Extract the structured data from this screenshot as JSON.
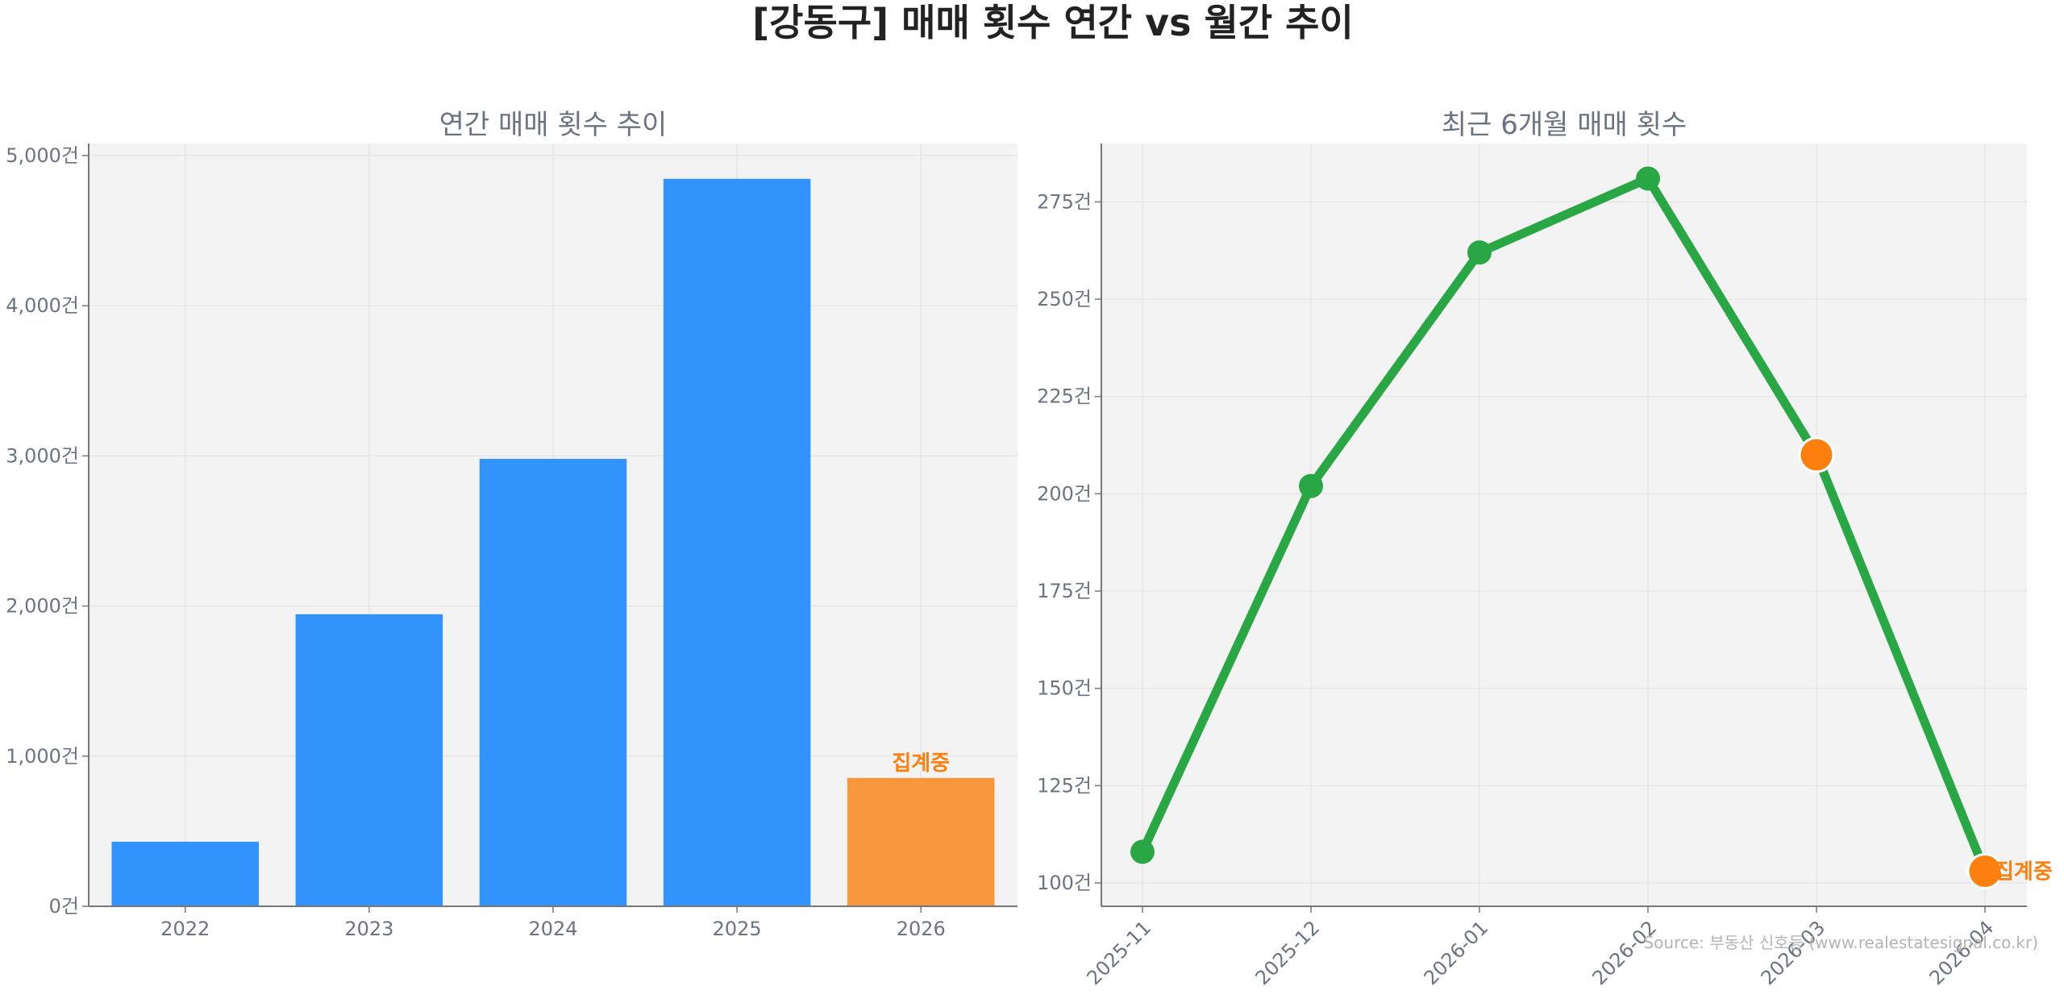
{
  "title": "[강동구] 매매 횟수 연간 vs 월간 추이",
  "source": "Source: 부동산 신호등 (www.realestatesignal.co.kr)",
  "colors": {
    "bar": "#3193fb",
    "bar_partial": "#f9973f",
    "line": "#29a745",
    "point_partial": "#fd7f0e",
    "note": "#fd7f0e",
    "panel_bg": "#f3f3f3"
  },
  "chart_data": [
    {
      "type": "bar",
      "title": "연간 매매 횟수 추이",
      "categories": [
        "2022",
        "2023",
        "2024",
        "2025",
        "2026"
      ],
      "values": [
        430,
        1945,
        2980,
        4845,
        855
      ],
      "partial": [
        false,
        false,
        false,
        false,
        true
      ],
      "partial_label": "집계중",
      "ylim": [
        0,
        5080
      ],
      "yticks": [
        0,
        1000,
        2000,
        3000,
        4000,
        5000
      ],
      "ytick_labels": [
        "0건",
        "1,000건",
        "2,000건",
        "3,000건",
        "4,000건",
        "5,000건"
      ],
      "grid": true
    },
    {
      "type": "line",
      "title": "최근 6개월 매매 횟수",
      "categories": [
        "2025-11",
        "2025-12",
        "2026-01",
        "2026-02",
        "2026-03",
        "2026-04"
      ],
      "values": [
        108,
        202,
        262,
        281,
        210,
        103
      ],
      "partial": [
        false,
        false,
        false,
        false,
        true,
        true
      ],
      "partial_label": "집계중",
      "ylim": [
        94,
        290
      ],
      "yticks": [
        100,
        125,
        150,
        175,
        200,
        225,
        250,
        275
      ],
      "ytick_labels": [
        "100건",
        "125건",
        "150건",
        "175건",
        "200건",
        "225건",
        "250건",
        "275건"
      ],
      "grid": true
    }
  ]
}
